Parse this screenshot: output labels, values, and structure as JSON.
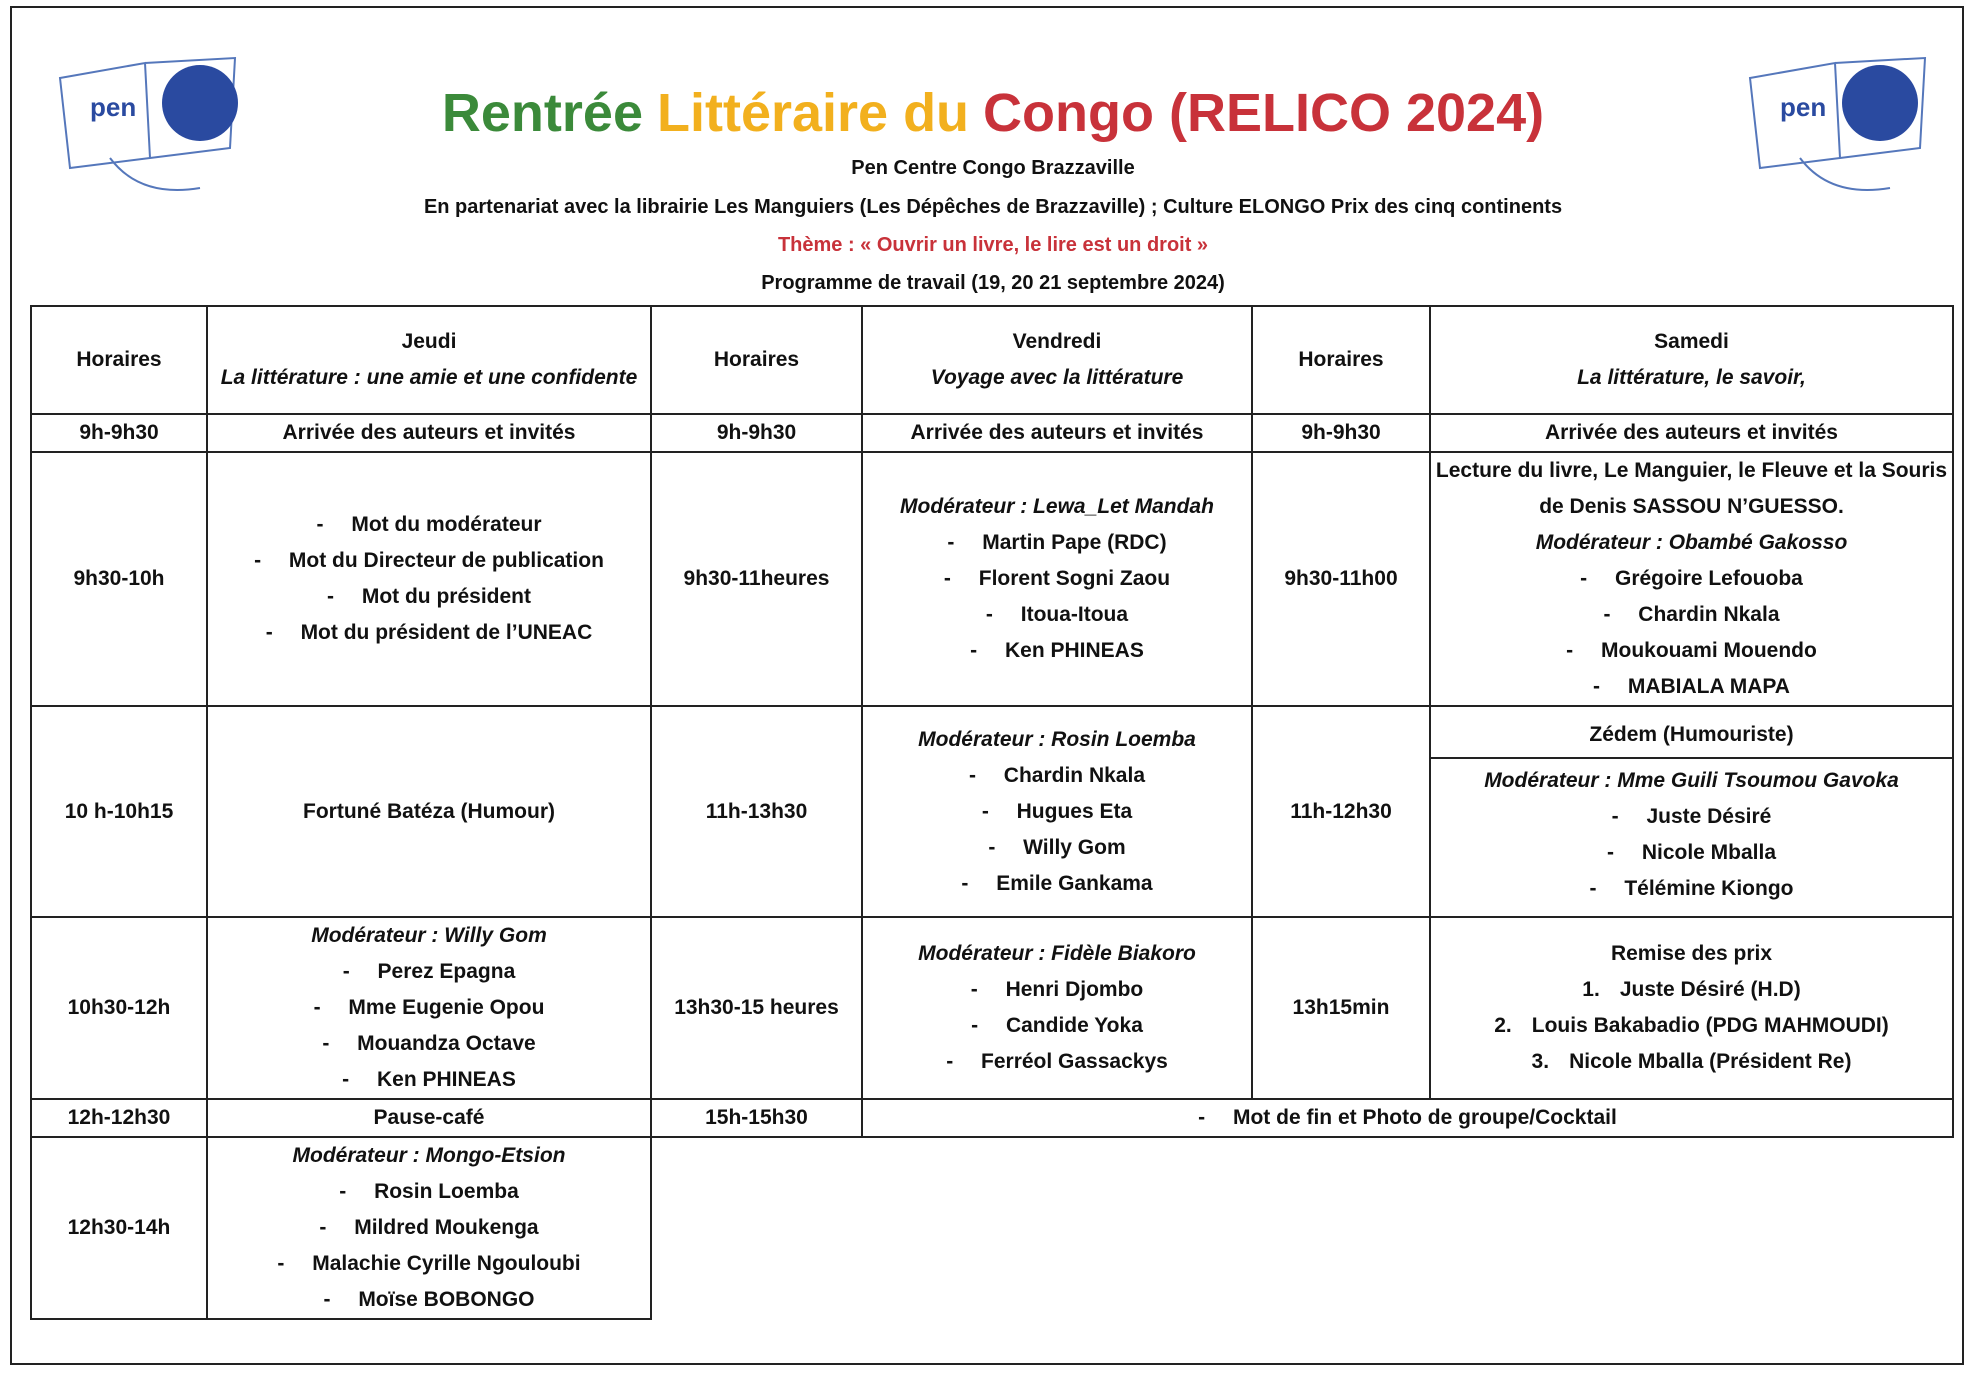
{
  "header": {
    "logo_text": "pen",
    "title": [
      "Rentrée",
      "Littéraire du",
      "Congo (RELICO 2024)"
    ],
    "organizer": "Pen Centre Congo Brazzaville",
    "partners": "En partenariat avec la librairie Les Manguiers (Les Dépêches de Brazzaville) ; Culture ELONGO Prix des cinq continents",
    "theme": "Thème : « Ouvrir un livre, le lire est un droit »",
    "programme": "Programme de travail (19, 20 21 septembre 2024)"
  },
  "table": {
    "rows": [
      [
        {
          "text": [
            "Horaires"
          ]
        },
        {
          "text": [
            "Jeudi"
          ],
          "subtitle": "La littérature : une amie et une confidente"
        },
        {
          "text": [
            "Horaires"
          ]
        },
        {
          "text": [
            "Vendredi"
          ],
          "subtitle": "Voyage avec la littérature"
        },
        {
          "text": [
            "Horaires"
          ]
        },
        {
          "text": [
            "Samedi"
          ],
          "subtitle": "La littérature, le savoir,"
        }
      ],
      [
        {
          "text": [
            "9h-9h30"
          ]
        },
        {
          "text": [
            "Arrivée des auteurs et invités"
          ]
        },
        {
          "text": [
            "9h-9h30"
          ]
        },
        {
          "text": [
            "Arrivée des auteurs et invités"
          ]
        },
        {
          "text": [
            "9h-9h30"
          ]
        },
        {
          "text": [
            "Arrivée des auteurs et invités"
          ]
        }
      ],
      [
        {
          "text": [
            "9h30-10h"
          ]
        },
        {
          "items": [
            "Mot du modérateur",
            "Mot du Directeur de publication",
            "Mot du président",
            "Mot du président de l’UNEAC"
          ]
        },
        {
          "text": [
            "9h30-11heures"
          ]
        },
        {
          "moderator": "Modérateur : Lewa_Let Mandah",
          "items": [
            "Martin Pape (RDC)",
            "Florent Sogni Zaou",
            "Itoua-Itoua",
            "Ken PHINEAS"
          ]
        },
        {
          "text": [
            "9h30-11h00"
          ]
        },
        {
          "text": [
            "Lecture du livre, Le Manguier, le Fleuve et la Souris de Denis SASSOU N’GUESSO."
          ],
          "moderator": "Modérateur : Obambé Gakosso",
          "items": [
            "Grégoire Lefouoba",
            "Chardin Nkala",
            "Moukouami Mouendo",
            "MABIALA MAPA"
          ]
        }
      ],
      [
        {
          "text": [
            "10 h-10h15"
          ]
        },
        {
          "text": [
            "Fortuné Batéza (Humour)"
          ]
        },
        {
          "text": [
            "11h-13h30"
          ]
        },
        {
          "moderator": "Modérateur : Rosin Loemba",
          "items": [
            "Chardin Nkala",
            "Hugues Eta",
            "Willy Gom",
            "Emile Gankama"
          ]
        },
        {
          "text": [
            "11h-12h30"
          ]
        },
        {
          "parts": [
            {
              "text": [
                "Zédem (Humouriste)"
              ]
            },
            {
              "moderator": "Modérateur : Mme Guili Tsoumou Gavoka",
              "items": [
                "Juste Désiré",
                "Nicole Mballa",
                "Télémine Kiongo"
              ]
            }
          ]
        }
      ],
      [
        {
          "text": [
            "10h30-12h"
          ]
        },
        {
          "moderator": "Modérateur : Willy Gom",
          "items": [
            "Perez Epagna",
            "Mme Eugenie Opou",
            "Mouandza Octave",
            "Ken PHINEAS"
          ]
        },
        {
          "text": [
            "13h30-15 heures"
          ]
        },
        {
          "moderator": "Modérateur : Fidèle Biakoro",
          "items": [
            "Henri Djombo",
            "Candide Yoka",
            "Ferréol Gassackys"
          ]
        },
        {
          "text": [
            "13h15min"
          ]
        },
        {
          "text": [
            "Remise des prix"
          ],
          "numbered": [
            "Juste Désiré (H.D)",
            "Louis Bakabadio (PDG MAHMOUDI)",
            "Nicole Mballa (Président Re)"
          ]
        }
      ],
      [
        {
          "text": [
            "12h-12h30"
          ]
        },
        {
          "text": [
            "Pause-café"
          ]
        },
        {
          "text": [
            "15h-15h30"
          ]
        },
        {
          "items": [
            "Mot de fin et Photo de groupe/Cocktail"
          ]
        }
      ],
      [
        {
          "text": [
            "12h30-14h"
          ]
        },
        {
          "moderator": "Modérateur : Mongo-Etsion",
          "items": [
            "Rosin Loemba",
            "Mildred Moukenga",
            "Malachie Cyrille Ngouloubi",
            "Moïse BOBONGO"
          ]
        }
      ]
    ]
  }
}
